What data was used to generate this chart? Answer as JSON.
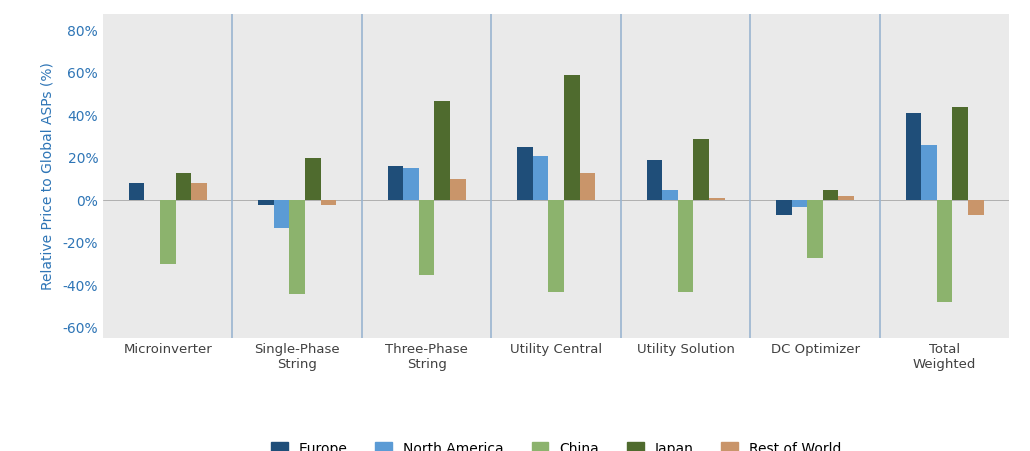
{
  "categories": [
    "Microinverter",
    "Single-Phase\nString",
    "Three-Phase\nString",
    "Utility Central",
    "Utility Solution",
    "DC Optimizer",
    "Total\nWeighted"
  ],
  "series": {
    "Europe": [
      8,
      -2,
      16,
      25,
      19,
      -7,
      41
    ],
    "North America": [
      0,
      -13,
      15,
      21,
      5,
      -3,
      26
    ],
    "China": [
      -30,
      -44,
      -35,
      -43,
      -43,
      -27,
      -48
    ],
    "Japan": [
      13,
      20,
      47,
      59,
      29,
      5,
      44
    ],
    "Rest of World": [
      8,
      -2,
      10,
      13,
      1,
      2,
      -7
    ]
  },
  "colors": {
    "Europe": "#1F4E79",
    "North America": "#5B9BD5",
    "China": "#8CB36D",
    "Japan": "#4F6B2E",
    "Rest of World": "#C9956A"
  },
  "ylabel": "Relative Price to Global ASPs (%)",
  "ylim": [
    -65,
    88
  ],
  "yticks": [
    -60,
    -40,
    -20,
    0,
    20,
    40,
    60,
    80
  ],
  "background_color": "#EAEAEA",
  "fig_background": "#FFFFFF",
  "divider_color": "#9AB4D0",
  "axis_color": "#2E75B6",
  "legend_order": [
    "Europe",
    "North America",
    "China",
    "Japan",
    "Rest of World"
  ]
}
